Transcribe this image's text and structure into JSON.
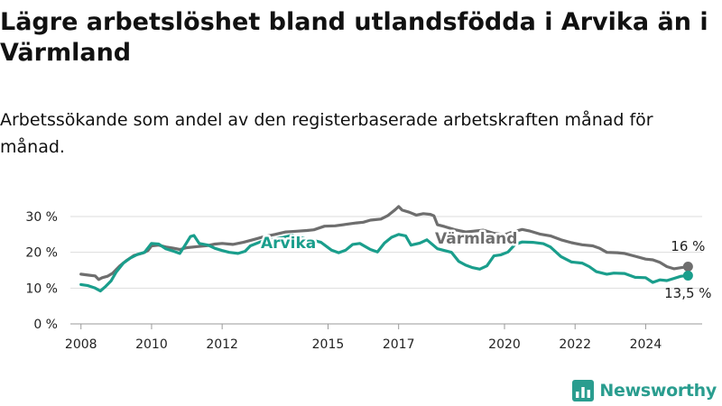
{
  "title": "Lägre arbetslöshet bland utlandsfödda i Arvika än i Värmland",
  "subtitle": "Arbetssökande som andel av den registerbaserade arbetskraften månad för månad.",
  "brand": {
    "name": "Newsworthy",
    "color": "#2a9d8f",
    "icon": "bar-chart-logo-icon"
  },
  "chart_data": {
    "type": "line",
    "xlabel": "",
    "ylabel": "",
    "x_range": [
      2008,
      2025
    ],
    "ylim": [
      0,
      30
    ],
    "y_ticks": [
      {
        "value": 0,
        "label": "0 %"
      },
      {
        "value": 10,
        "label": "10 %"
      },
      {
        "value": 20,
        "label": "20 %"
      },
      {
        "value": 30,
        "label": "30 %"
      }
    ],
    "x_ticks": [
      {
        "value": 2008,
        "label": "2008"
      },
      {
        "value": 2010,
        "label": "2010"
      },
      {
        "value": 2012,
        "label": "2012"
      },
      {
        "value": 2015,
        "label": "2015"
      },
      {
        "value": 2017,
        "label": "2017"
      },
      {
        "value": 2020,
        "label": "2020"
      },
      {
        "value": 2022,
        "label": "2022"
      },
      {
        "value": 2024,
        "label": "2024"
      }
    ],
    "grid": "horizontal",
    "series": [
      {
        "name": "Värmland",
        "color": "#6e6e6e",
        "end_label": "16 %",
        "points": [
          [
            2008.0,
            13.9
          ],
          [
            2008.25,
            13.6
          ],
          [
            2008.4,
            13.4
          ],
          [
            2008.5,
            12.4
          ],
          [
            2008.6,
            12.9
          ],
          [
            2008.75,
            13.3
          ],
          [
            2008.9,
            14.2
          ],
          [
            2009.1,
            16.2
          ],
          [
            2009.3,
            17.8
          ],
          [
            2009.5,
            19.1
          ],
          [
            2009.75,
            19.8
          ],
          [
            2009.9,
            20.5
          ],
          [
            2010.0,
            21.8
          ],
          [
            2010.2,
            22.0
          ],
          [
            2010.4,
            21.5
          ],
          [
            2010.6,
            21.2
          ],
          [
            2010.8,
            20.8
          ],
          [
            2011.0,
            21.3
          ],
          [
            2011.3,
            21.6
          ],
          [
            2011.6,
            21.9
          ],
          [
            2011.8,
            22.3
          ],
          [
            2012.0,
            22.5
          ],
          [
            2012.3,
            22.2
          ],
          [
            2012.6,
            22.8
          ],
          [
            2012.9,
            23.6
          ],
          [
            2013.2,
            24.4
          ],
          [
            2013.5,
            25.0
          ],
          [
            2013.8,
            25.7
          ],
          [
            2014.1,
            25.9
          ],
          [
            2014.4,
            26.1
          ],
          [
            2014.6,
            26.3
          ],
          [
            2014.9,
            27.3
          ],
          [
            2015.2,
            27.4
          ],
          [
            2015.5,
            27.8
          ],
          [
            2015.8,
            28.2
          ],
          [
            2016.0,
            28.4
          ],
          [
            2016.2,
            29.0
          ],
          [
            2016.5,
            29.3
          ],
          [
            2016.7,
            30.3
          ],
          [
            2016.9,
            31.9
          ],
          [
            2017.0,
            32.8
          ],
          [
            2017.1,
            31.8
          ],
          [
            2017.3,
            31.2
          ],
          [
            2017.5,
            30.4
          ],
          [
            2017.7,
            30.8
          ],
          [
            2017.9,
            30.6
          ],
          [
            2018.0,
            30.2
          ],
          [
            2018.1,
            27.7
          ],
          [
            2018.3,
            27.2
          ],
          [
            2018.6,
            26.3
          ],
          [
            2018.9,
            25.7
          ],
          [
            2019.1,
            25.9
          ],
          [
            2019.4,
            26.2
          ],
          [
            2019.7,
            25.3
          ],
          [
            2020.0,
            24.9
          ],
          [
            2020.2,
            25.6
          ],
          [
            2020.5,
            26.4
          ],
          [
            2020.7,
            26.0
          ],
          [
            2021.0,
            25.1
          ],
          [
            2021.3,
            24.6
          ],
          [
            2021.6,
            23.5
          ],
          [
            2021.9,
            22.7
          ],
          [
            2022.2,
            22.1
          ],
          [
            2022.5,
            21.8
          ],
          [
            2022.7,
            21.1
          ],
          [
            2022.9,
            20.0
          ],
          [
            2023.2,
            19.9
          ],
          [
            2023.4,
            19.7
          ],
          [
            2023.7,
            18.9
          ],
          [
            2024.0,
            18.1
          ],
          [
            2024.2,
            17.9
          ],
          [
            2024.4,
            17.2
          ],
          [
            2024.6,
            16.0
          ],
          [
            2024.8,
            15.4
          ],
          [
            2025.0,
            15.7
          ],
          [
            2025.2,
            16.0
          ]
        ]
      },
      {
        "name": "Arvika",
        "color": "#1a9e8c",
        "end_label": "13,5 %",
        "points": [
          [
            2008.0,
            11.0
          ],
          [
            2008.2,
            10.7
          ],
          [
            2008.4,
            10.0
          ],
          [
            2008.55,
            9.2
          ],
          [
            2008.7,
            10.5
          ],
          [
            2008.85,
            12.0
          ],
          [
            2009.0,
            14.5
          ],
          [
            2009.2,
            17.0
          ],
          [
            2009.4,
            18.4
          ],
          [
            2009.6,
            19.4
          ],
          [
            2009.8,
            20.0
          ],
          [
            2010.0,
            22.5
          ],
          [
            2010.2,
            22.3
          ],
          [
            2010.4,
            21.0
          ],
          [
            2010.6,
            20.4
          ],
          [
            2010.8,
            19.7
          ],
          [
            2010.95,
            22.0
          ],
          [
            2011.1,
            24.4
          ],
          [
            2011.2,
            24.7
          ],
          [
            2011.35,
            22.5
          ],
          [
            2011.6,
            22.0
          ],
          [
            2011.8,
            21.1
          ],
          [
            2012.0,
            20.5
          ],
          [
            2012.2,
            20.0
          ],
          [
            2012.45,
            19.7
          ],
          [
            2012.65,
            20.3
          ],
          [
            2012.8,
            21.8
          ],
          [
            2013.1,
            23.0
          ],
          [
            2013.4,
            23.6
          ],
          [
            2013.7,
            24.1
          ],
          [
            2014.0,
            24.8
          ],
          [
            2014.3,
            23.9
          ],
          [
            2014.6,
            23.3
          ],
          [
            2014.8,
            22.8
          ],
          [
            2015.1,
            20.6
          ],
          [
            2015.3,
            19.9
          ],
          [
            2015.5,
            20.6
          ],
          [
            2015.7,
            22.2
          ],
          [
            2015.9,
            22.5
          ],
          [
            2016.2,
            20.8
          ],
          [
            2016.4,
            20.1
          ],
          [
            2016.6,
            22.6
          ],
          [
            2016.8,
            24.2
          ],
          [
            2017.0,
            25.0
          ],
          [
            2017.2,
            24.6
          ],
          [
            2017.35,
            22.0
          ],
          [
            2017.6,
            22.6
          ],
          [
            2017.8,
            23.5
          ],
          [
            2018.1,
            21.0
          ],
          [
            2018.3,
            20.5
          ],
          [
            2018.5,
            20.0
          ],
          [
            2018.7,
            17.5
          ],
          [
            2018.9,
            16.4
          ],
          [
            2019.1,
            15.7
          ],
          [
            2019.3,
            15.3
          ],
          [
            2019.5,
            16.2
          ],
          [
            2019.7,
            19.0
          ],
          [
            2019.9,
            19.3
          ],
          [
            2020.1,
            20.1
          ],
          [
            2020.3,
            22.2
          ],
          [
            2020.5,
            22.9
          ],
          [
            2020.8,
            22.8
          ],
          [
            2021.1,
            22.4
          ],
          [
            2021.3,
            21.5
          ],
          [
            2021.6,
            18.8
          ],
          [
            2021.9,
            17.3
          ],
          [
            2022.2,
            17.0
          ],
          [
            2022.4,
            16.0
          ],
          [
            2022.6,
            14.6
          ],
          [
            2022.9,
            13.9
          ],
          [
            2023.1,
            14.2
          ],
          [
            2023.4,
            14.1
          ],
          [
            2023.7,
            13.0
          ],
          [
            2024.0,
            12.9
          ],
          [
            2024.2,
            11.6
          ],
          [
            2024.4,
            12.3
          ],
          [
            2024.6,
            12.1
          ],
          [
            2024.8,
            12.7
          ],
          [
            2025.0,
            13.3
          ],
          [
            2025.2,
            13.5
          ]
        ]
      }
    ]
  }
}
